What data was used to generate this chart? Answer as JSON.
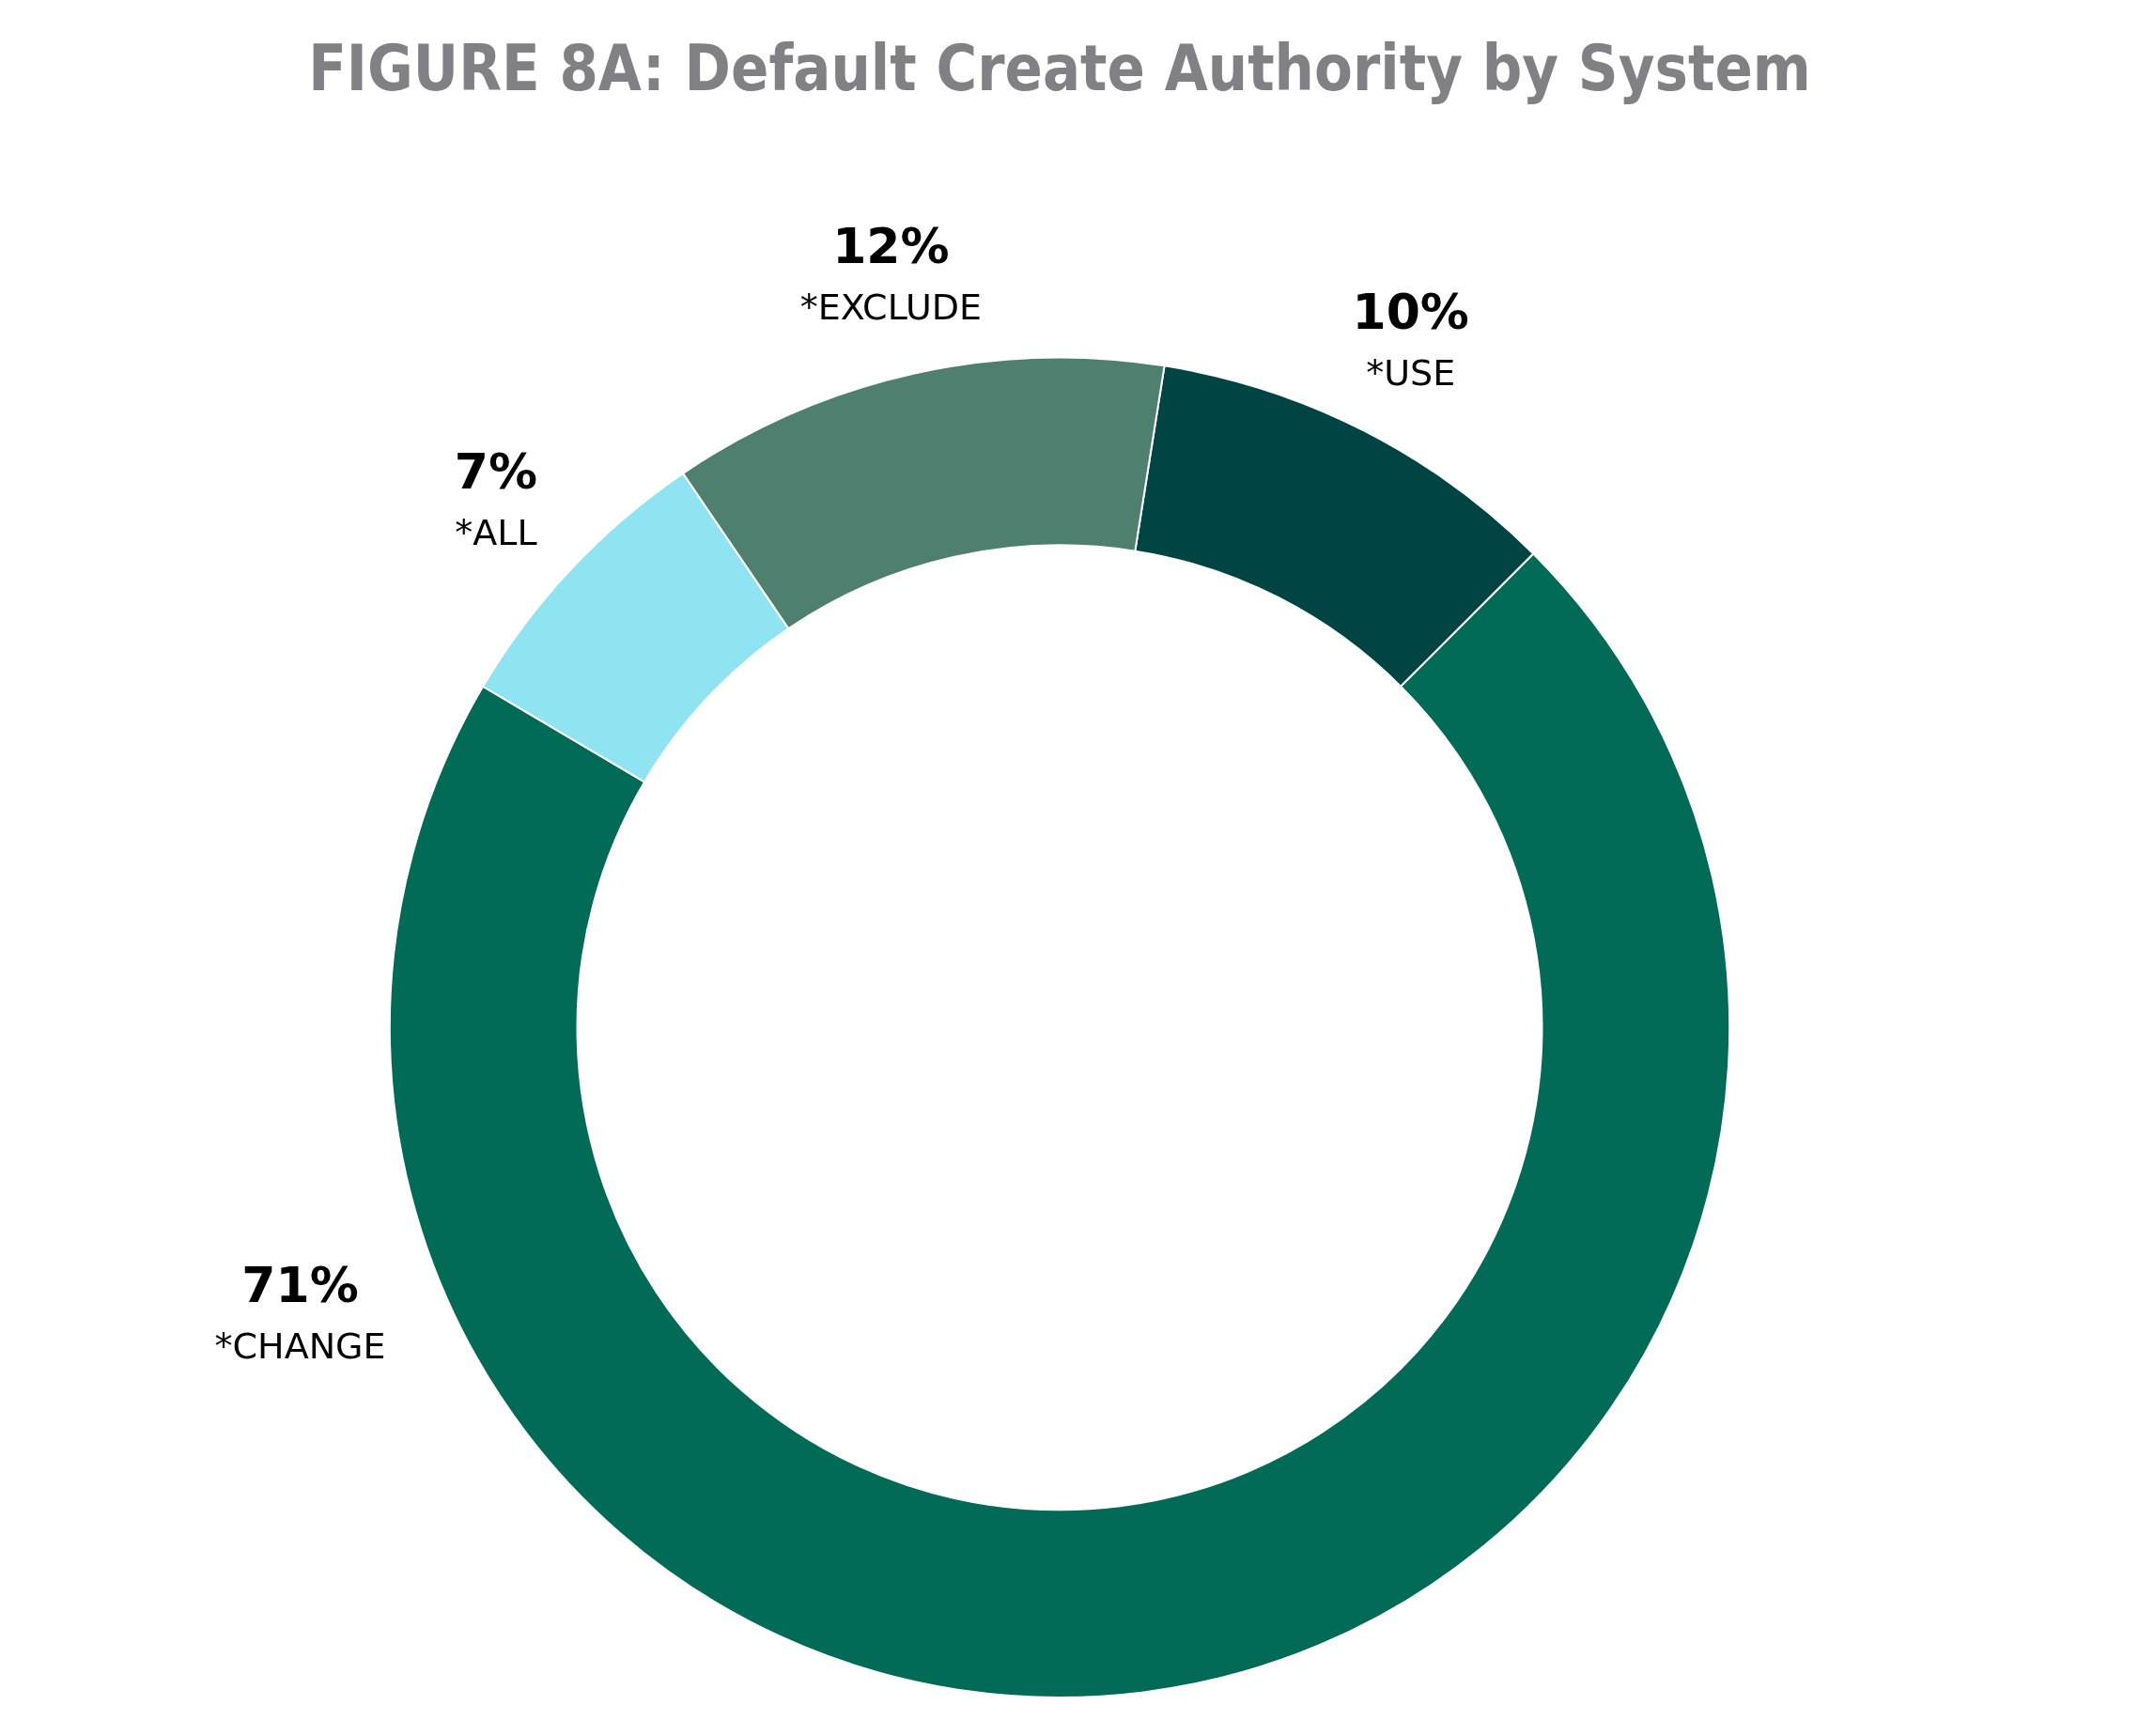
{
  "chart_data": {
    "type": "donut",
    "title": "FIGURE 8A: Default Create Authority by System",
    "categories": [
      "*USE",
      "*CHANGE",
      "*ALL",
      "*EXCLUDE"
    ],
    "values": [
      10,
      71,
      7,
      12
    ],
    "colors": [
      "#004443",
      "#026b57",
      "#90e4f2",
      "#4e7f6f"
    ],
    "value_labels": [
      "10%",
      "71%",
      "7%",
      "12%"
    ],
    "legend": false
  }
}
